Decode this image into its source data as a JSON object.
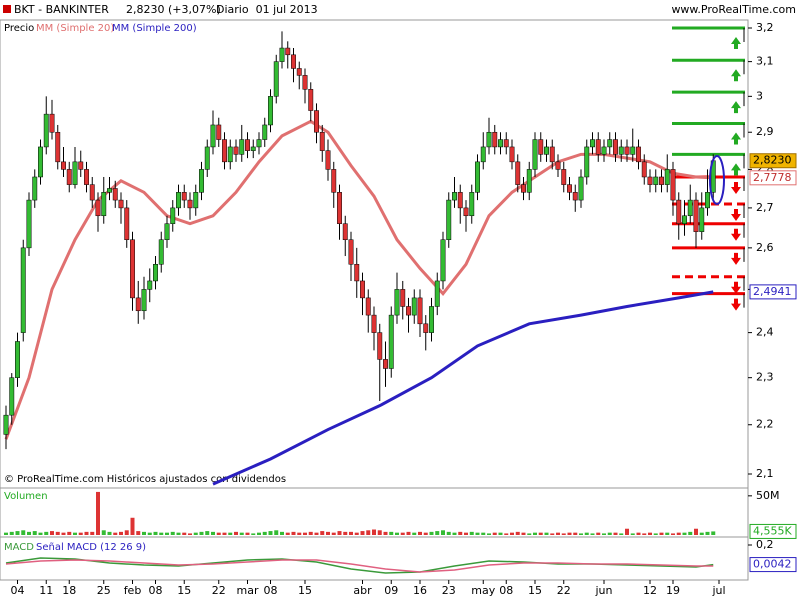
{
  "chart_data": {
    "type": "candlestick",
    "title": "BKT - BANKINTER",
    "quote": "2,8230 (+3,07%)",
    "period": "Diario  01 jul 2013",
    "source": "www.ProRealTime.com",
    "footnote": "© ProRealTime.com Históricos ajustados con dividendos",
    "price_label": "Precio",
    "log": true,
    "ylim": [
      2.1,
      3.2
    ],
    "yticks": [
      {
        "value": 3.2,
        "label": "3,2"
      },
      {
        "value": 3.1,
        "label": "3,1"
      },
      3,
      {
        "value": 2.9,
        "label": "2,9"
      },
      {
        "value": 2.8,
        "label": "2,8"
      },
      {
        "value": 2.7,
        "label": "2,7"
      },
      {
        "value": 2.6,
        "label": "2,6"
      },
      {
        "value": 2.5,
        "label": "2,5"
      },
      {
        "value": 2.4,
        "label": "2,4"
      },
      {
        "value": 2.3,
        "label": "2,3"
      },
      {
        "value": 2.2,
        "label": "2,2"
      },
      {
        "value": 2.1,
        "label": "2,1"
      }
    ],
    "xticks": [
      {
        "value": 2,
        "label": "04"
      },
      {
        "value": 7,
        "label": "11"
      },
      {
        "value": 11,
        "label": "18"
      },
      {
        "value": 17,
        "label": "25"
      },
      {
        "value": 22,
        "label": "feb"
      },
      {
        "value": 26,
        "label": "08"
      },
      {
        "value": 31,
        "label": "15"
      },
      {
        "value": 37,
        "label": "22"
      },
      {
        "value": 42,
        "label": "mar"
      },
      {
        "value": 46,
        "label": "08"
      },
      {
        "value": 52,
        "label": "15"
      },
      {
        "value": 62,
        "label": "abr"
      },
      {
        "value": 67,
        "label": "09"
      },
      {
        "value": 72,
        "label": "16"
      },
      {
        "value": 77,
        "label": "23"
      },
      {
        "value": 83,
        "label": "may"
      },
      {
        "value": 87,
        "label": "08"
      },
      {
        "value": 92,
        "label": "15"
      },
      {
        "value": 97,
        "label": "22"
      },
      {
        "value": 104,
        "label": "jun"
      },
      {
        "value": 112,
        "label": "12"
      },
      {
        "value": 116,
        "label": "19"
      },
      {
        "value": 124,
        "label": "jul"
      }
    ],
    "up_color": "#33bb33",
    "down_color": "#dd3333",
    "close_box": {
      "value": 2.823,
      "label": "2,8230",
      "color": "#f0b400"
    },
    "candles": [
      [
        2.18,
        2.24,
        2.15,
        2.22
      ],
      [
        2.22,
        2.31,
        2.2,
        2.3
      ],
      [
        2.3,
        2.4,
        2.28,
        2.38
      ],
      [
        2.4,
        2.62,
        2.38,
        2.6
      ],
      [
        2.6,
        2.74,
        2.58,
        2.72
      ],
      [
        2.72,
        2.8,
        2.7,
        2.78
      ],
      [
        2.78,
        2.88,
        2.76,
        2.86
      ],
      [
        2.86,
        3.0,
        2.84,
        2.95
      ],
      [
        2.95,
        2.99,
        2.88,
        2.9
      ],
      [
        2.9,
        2.92,
        2.8,
        2.82
      ],
      [
        2.82,
        2.86,
        2.78,
        2.8
      ],
      [
        2.8,
        2.82,
        2.74,
        2.76
      ],
      [
        2.76,
        2.86,
        2.75,
        2.82
      ],
      [
        2.82,
        2.85,
        2.78,
        2.8
      ],
      [
        2.8,
        2.82,
        2.74,
        2.76
      ],
      [
        2.76,
        2.78,
        2.7,
        2.72
      ],
      [
        2.72,
        2.74,
        2.64,
        2.68
      ],
      [
        2.68,
        2.78,
        2.66,
        2.74
      ],
      [
        2.74,
        2.78,
        2.72,
        2.75
      ],
      [
        2.75,
        2.77,
        2.7,
        2.72
      ],
      [
        2.72,
        2.74,
        2.66,
        2.7
      ],
      [
        2.7,
        2.72,
        2.6,
        2.62
      ],
      [
        2.62,
        2.64,
        2.45,
        2.48
      ],
      [
        2.48,
        2.52,
        2.42,
        2.45
      ],
      [
        2.45,
        2.53,
        2.43,
        2.5
      ],
      [
        2.5,
        2.55,
        2.47,
        2.52
      ],
      [
        2.52,
        2.58,
        2.5,
        2.56
      ],
      [
        2.56,
        2.64,
        2.54,
        2.62
      ],
      [
        2.62,
        2.68,
        2.6,
        2.66
      ],
      [
        2.66,
        2.72,
        2.64,
        2.7
      ],
      [
        2.7,
        2.76,
        2.68,
        2.74
      ],
      [
        2.74,
        2.76,
        2.7,
        2.72
      ],
      [
        2.72,
        2.74,
        2.67,
        2.7
      ],
      [
        2.7,
        2.76,
        2.68,
        2.74
      ],
      [
        2.74,
        2.82,
        2.72,
        2.8
      ],
      [
        2.8,
        2.88,
        2.78,
        2.86
      ],
      [
        2.86,
        2.96,
        2.84,
        2.92
      ],
      [
        2.92,
        2.94,
        2.86,
        2.88
      ],
      [
        2.88,
        2.9,
        2.8,
        2.82
      ],
      [
        2.82,
        2.88,
        2.8,
        2.86
      ],
      [
        2.86,
        2.88,
        2.82,
        2.84
      ],
      [
        2.84,
        2.92,
        2.82,
        2.88
      ],
      [
        2.88,
        2.9,
        2.83,
        2.85
      ],
      [
        2.85,
        2.88,
        2.83,
        2.86
      ],
      [
        2.86,
        2.9,
        2.84,
        2.88
      ],
      [
        2.88,
        2.94,
        2.86,
        2.92
      ],
      [
        2.92,
        3.02,
        2.9,
        3.0
      ],
      [
        3.0,
        3.12,
        2.98,
        3.1
      ],
      [
        3.1,
        3.19,
        3.08,
        3.14
      ],
      [
        3.14,
        3.16,
        3.08,
        3.12
      ],
      [
        3.12,
        3.14,
        3.04,
        3.08
      ],
      [
        3.08,
        3.1,
        3.02,
        3.06
      ],
      [
        3.06,
        3.08,
        2.98,
        3.02
      ],
      [
        3.02,
        3.04,
        2.93,
        2.96
      ],
      [
        2.96,
        2.98,
        2.87,
        2.9
      ],
      [
        2.9,
        2.92,
        2.82,
        2.85
      ],
      [
        2.85,
        2.88,
        2.77,
        2.8
      ],
      [
        2.8,
        2.82,
        2.7,
        2.74
      ],
      [
        2.74,
        2.76,
        2.62,
        2.66
      ],
      [
        2.66,
        2.68,
        2.58,
        2.62
      ],
      [
        2.62,
        2.64,
        2.52,
        2.56
      ],
      [
        2.56,
        2.6,
        2.48,
        2.52
      ],
      [
        2.52,
        2.54,
        2.44,
        2.48
      ],
      [
        2.48,
        2.5,
        2.4,
        2.44
      ],
      [
        2.44,
        2.46,
        2.36,
        2.4
      ],
      [
        2.4,
        2.42,
        2.25,
        2.34
      ],
      [
        2.34,
        2.38,
        2.28,
        2.32
      ],
      [
        2.32,
        2.46,
        2.3,
        2.44
      ],
      [
        2.44,
        2.54,
        2.42,
        2.5
      ],
      [
        2.5,
        2.52,
        2.43,
        2.46
      ],
      [
        2.46,
        2.48,
        2.4,
        2.44
      ],
      [
        2.44,
        2.5,
        2.42,
        2.48
      ],
      [
        2.48,
        2.5,
        2.39,
        2.42
      ],
      [
        2.42,
        2.44,
        2.36,
        2.4
      ],
      [
        2.4,
        2.48,
        2.38,
        2.46
      ],
      [
        2.46,
        2.54,
        2.44,
        2.52
      ],
      [
        2.52,
        2.64,
        2.5,
        2.62
      ],
      [
        2.62,
        2.74,
        2.6,
        2.72
      ],
      [
        2.72,
        2.78,
        2.7,
        2.74
      ],
      [
        2.74,
        2.76,
        2.66,
        2.7
      ],
      [
        2.7,
        2.72,
        2.64,
        2.68
      ],
      [
        2.68,
        2.76,
        2.66,
        2.74
      ],
      [
        2.74,
        2.84,
        2.72,
        2.82
      ],
      [
        2.82,
        2.9,
        2.8,
        2.86
      ],
      [
        2.86,
        2.94,
        2.84,
        2.9
      ],
      [
        2.9,
        2.92,
        2.84,
        2.86
      ],
      [
        2.86,
        2.9,
        2.84,
        2.88
      ],
      [
        2.88,
        2.9,
        2.84,
        2.86
      ],
      [
        2.86,
        2.88,
        2.8,
        2.82
      ],
      [
        2.82,
        2.84,
        2.74,
        2.76
      ],
      [
        2.76,
        2.78,
        2.72,
        2.74
      ],
      [
        2.74,
        2.82,
        2.72,
        2.8
      ],
      [
        2.8,
        2.9,
        2.78,
        2.88
      ],
      [
        2.88,
        2.9,
        2.82,
        2.84
      ],
      [
        2.84,
        2.88,
        2.82,
        2.86
      ],
      [
        2.86,
        2.88,
        2.8,
        2.82
      ],
      [
        2.82,
        2.84,
        2.78,
        2.8
      ],
      [
        2.8,
        2.82,
        2.74,
        2.76
      ],
      [
        2.76,
        2.78,
        2.72,
        2.74
      ],
      [
        2.74,
        2.76,
        2.69,
        2.72
      ],
      [
        2.72,
        2.8,
        2.7,
        2.78
      ],
      [
        2.78,
        2.88,
        2.76,
        2.86
      ],
      [
        2.86,
        2.9,
        2.84,
        2.88
      ],
      [
        2.88,
        2.9,
        2.82,
        2.84
      ],
      [
        2.84,
        2.88,
        2.82,
        2.86
      ],
      [
        2.86,
        2.9,
        2.84,
        2.88
      ],
      [
        2.88,
        2.9,
        2.82,
        2.84
      ],
      [
        2.84,
        2.88,
        2.82,
        2.86
      ],
      [
        2.86,
        2.88,
        2.82,
        2.84
      ],
      [
        2.84,
        2.91,
        2.82,
        2.86
      ],
      [
        2.86,
        2.88,
        2.8,
        2.82
      ],
      [
        2.82,
        2.84,
        2.76,
        2.78
      ],
      [
        2.78,
        2.8,
        2.74,
        2.76
      ],
      [
        2.76,
        2.8,
        2.74,
        2.78
      ],
      [
        2.78,
        2.8,
        2.74,
        2.76
      ],
      [
        2.76,
        2.84,
        2.74,
        2.8
      ],
      [
        2.8,
        2.82,
        2.68,
        2.72
      ],
      [
        2.72,
        2.74,
        2.62,
        2.66
      ],
      [
        2.66,
        2.72,
        2.63,
        2.68
      ],
      [
        2.68,
        2.76,
        2.66,
        2.72
      ],
      [
        2.72,
        2.74,
        2.6,
        2.64
      ],
      [
        2.64,
        2.74,
        2.62,
        2.7
      ],
      [
        2.7,
        2.8,
        2.68,
        2.74
      ],
      [
        2.74,
        2.84,
        2.72,
        2.823
      ]
    ],
    "series": [
      {
        "name": "MM (Simple 20)",
        "color": "#e07070",
        "x": [
          0,
          4,
          8,
          12,
          16,
          20,
          24,
          28,
          32,
          36,
          40,
          44,
          48,
          53,
          56,
          60,
          64,
          68,
          72,
          76,
          80,
          84,
          88,
          92,
          96,
          100,
          104,
          108,
          112,
          116,
          120,
          123
        ],
        "values": [
          2.17,
          2.3,
          2.5,
          2.62,
          2.72,
          2.77,
          2.74,
          2.68,
          2.66,
          2.68,
          2.74,
          2.82,
          2.89,
          2.93,
          2.9,
          2.81,
          2.73,
          2.62,
          2.55,
          2.49,
          2.56,
          2.68,
          2.74,
          2.78,
          2.82,
          2.84,
          2.84,
          2.83,
          2.82,
          2.79,
          2.78,
          2.7778
        ],
        "last": {
          "value": 2.7778,
          "label": "2,7778"
        }
      },
      {
        "name": "MM (Simple 200)",
        "color": "#2a1fc0",
        "x": [
          36,
          46,
          56,
          65,
          74,
          82,
          91,
          100,
          108,
          117,
          123
        ],
        "values": [
          2.08,
          2.13,
          2.19,
          2.24,
          2.3,
          2.37,
          2.42,
          2.44,
          2.46,
          2.48,
          2.4941
        ],
        "last": {
          "value": 2.4941,
          "label": "2,4941"
        }
      }
    ],
    "levels": [
      {
        "value": 3.2,
        "color": "#22aa22",
        "dashed": false
      },
      {
        "value": 3.104,
        "color": "#22aa22",
        "dashed": false
      },
      {
        "value": 3.012,
        "color": "#22aa22",
        "dashed": false
      },
      {
        "value": 2.924,
        "color": "#22aa22",
        "dashed": false
      },
      {
        "value": 2.84,
        "color": "#22aa22",
        "dashed": false
      },
      {
        "value": 2.78,
        "color": "#ee0000",
        "dashed": false
      },
      {
        "value": 2.71,
        "color": "#ee0000",
        "dashed": true
      },
      {
        "value": 2.66,
        "color": "#ee0000",
        "dashed": false
      },
      {
        "value": 2.6,
        "color": "#ee0000",
        "dashed": false
      },
      {
        "value": 2.53,
        "color": "#ee0000",
        "dashed": true
      },
      {
        "value": 2.49,
        "color": "#ee0000",
        "dashed": false
      }
    ],
    "volume": {
      "title": "Volumen",
      "ylim": [
        0,
        60
      ],
      "yticks": [
        {
          "value": 50,
          "label": "50M"
        }
      ],
      "last": {
        "value": 4.555,
        "label": "4,555K"
      },
      "values": [
        3,
        4,
        5,
        6,
        4,
        5,
        3,
        4,
        5,
        4,
        3,
        4,
        3,
        3,
        4,
        4,
        55,
        6,
        4,
        3,
        4,
        6,
        22,
        5,
        4,
        3,
        4,
        3,
        3,
        4,
        3,
        3,
        2,
        3,
        4,
        5,
        4,
        3,
        3,
        3,
        4,
        3,
        3,
        2,
        3,
        4,
        5,
        6,
        4,
        3,
        4,
        3,
        3,
        4,
        3,
        5,
        4,
        3,
        5,
        4,
        4,
        3,
        5,
        6,
        7,
        6,
        4,
        4,
        3,
        3,
        4,
        3,
        4,
        3,
        4,
        5,
        6,
        4,
        3,
        4,
        3,
        4,
        3,
        3,
        2,
        3,
        3,
        2,
        3,
        4,
        3,
        2,
        3,
        3,
        3,
        2,
        3,
        2,
        3,
        3,
        2,
        3,
        2,
        3,
        2,
        3,
        3,
        2,
        8,
        2,
        3,
        2,
        3,
        2,
        3,
        3,
        2,
        3,
        3,
        4,
        8,
        3,
        4,
        4.555
      ]
    },
    "macd": {
      "ylim": [
        -0.15,
        0.2
      ],
      "yticks": [
        {
          "value": 0.2,
          "label": "0,2"
        }
      ],
      "last": {
        "value": 0.0042,
        "label": "0,0042"
      },
      "series": [
        {
          "name": "MACD",
          "color": "#3a9a3a",
          "x": [
            0,
            6,
            12,
            18,
            24,
            30,
            36,
            42,
            48,
            54,
            60,
            66,
            72,
            78,
            84,
            90,
            96,
            102,
            108,
            114,
            120,
            123
          ],
          "values": [
            0.02,
            0.07,
            0.06,
            0.02,
            0.0,
            -0.01,
            0.02,
            0.05,
            0.06,
            0.03,
            -0.04,
            -0.08,
            -0.07,
            -0.01,
            0.04,
            0.03,
            0.01,
            0.01,
            0.0,
            -0.01,
            -0.02,
            0.0042
          ]
        },
        {
          "name": "Señal MACD (12 26 9)",
          "color": "#e06080",
          "x": [
            0,
            6,
            12,
            18,
            24,
            30,
            36,
            42,
            48,
            54,
            60,
            66,
            72,
            78,
            84,
            90,
            96,
            102,
            108,
            114,
            120,
            123
          ],
          "values": [
            0.01,
            0.04,
            0.05,
            0.04,
            0.02,
            0.0,
            0.01,
            0.03,
            0.05,
            0.05,
            0.01,
            -0.04,
            -0.07,
            -0.05,
            0.0,
            0.02,
            0.02,
            0.01,
            0.01,
            0.0,
            -0.01,
            -0.01
          ]
        }
      ]
    }
  }
}
